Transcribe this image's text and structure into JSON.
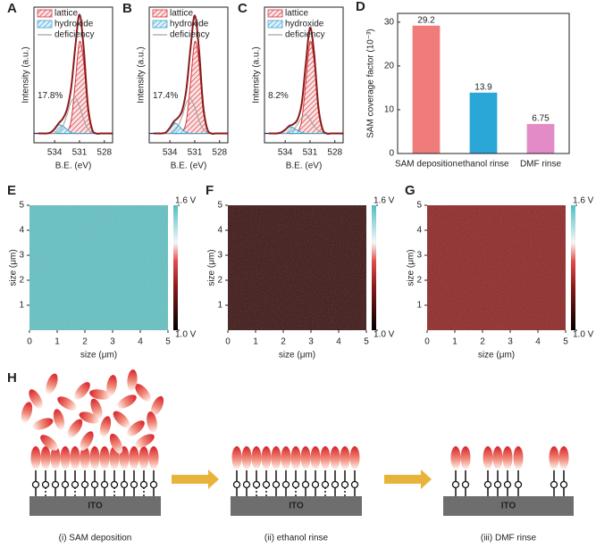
{
  "chart_data": [
    {
      "type": "xps",
      "panel": "A",
      "xlabel": "B.E. (eV)",
      "ylabel": "Intensity (a.u.)",
      "annotation": "17.8%",
      "x": [
        536,
        535.5,
        535,
        534.5,
        534,
        533.5,
        533,
        532.5,
        532,
        531.5,
        531,
        530.5,
        530,
        529.5,
        529,
        528.5,
        528,
        527.5,
        527
      ],
      "xlim": [
        536.5,
        527
      ],
      "ylim": [
        -10,
        135
      ],
      "xticks": [
        534,
        531,
        528
      ],
      "series": [
        {
          "name": "lattice",
          "color": "#d9363e",
          "values": [
            0,
            0,
            0,
            0,
            0,
            0,
            0,
            2,
            14,
            55,
            98,
            77,
            26,
            4,
            0,
            0,
            0,
            0,
            0
          ]
        },
        {
          "name": "hydroxide",
          "color": "#3aa6d0",
          "values": [
            0,
            0,
            0,
            1,
            5,
            9,
            8,
            4,
            1,
            0,
            0,
            0,
            0,
            0,
            0,
            0,
            0,
            0,
            0
          ]
        },
        {
          "name": "deficiency",
          "color": "#a0a0a0",
          "values": [
            0,
            0,
            0,
            0,
            0,
            2,
            8,
            20,
            34,
            38,
            29,
            15,
            5,
            1,
            0,
            0,
            0,
            0,
            0
          ]
        },
        {
          "color": "#8b1a1a",
          "values": [
            0,
            0,
            0,
            1,
            5,
            11,
            16,
            26,
            49,
            93,
            127,
            92,
            31,
            5,
            0,
            0,
            0,
            0,
            0
          ]
        }
      ]
    },
    {
      "type": "xps",
      "panel": "B",
      "xlabel": "B.E. (eV)",
      "ylabel": "Intensity (a.u.)",
      "annotation": "17.4%",
      "x": [
        536,
        535.5,
        535,
        534.5,
        534,
        533.5,
        533,
        532.5,
        532,
        531.5,
        531,
        530.5,
        530,
        529.5,
        529,
        528.5,
        528,
        527.5,
        527
      ],
      "xlim": [
        536.5,
        527
      ],
      "ylim": [
        -10,
        135
      ],
      "xticks": [
        534,
        531,
        528
      ],
      "series": [
        {
          "name": "lattice",
          "color": "#d9363e",
          "values": [
            0,
            0,
            0,
            0,
            0,
            0,
            0,
            2,
            14,
            55,
            98,
            77,
            26,
            4,
            0,
            0,
            0,
            0,
            0
          ]
        },
        {
          "name": "hydroxide",
          "color": "#3aa6d0",
          "values": [
            0,
            0,
            0,
            1,
            6,
            11,
            9,
            4,
            1,
            0,
            0,
            0,
            0,
            0,
            0,
            0,
            0,
            0,
            0
          ]
        },
        {
          "name": "deficiency",
          "color": "#a0a0a0",
          "values": [
            0,
            0,
            0,
            0,
            0,
            2,
            8,
            19,
            33,
            37,
            28,
            14,
            5,
            1,
            0,
            0,
            0,
            0,
            0
          ]
        },
        {
          "color": "#8b1a1a",
          "values": [
            0,
            0,
            0,
            1,
            6,
            13,
            17,
            25,
            48,
            92,
            126,
            91,
            31,
            5,
            0,
            0,
            0,
            0,
            0
          ]
        }
      ]
    },
    {
      "type": "xps",
      "panel": "C",
      "xlabel": "B.E. (eV)",
      "ylabel": "Intensity (a.u.)",
      "annotation": "8.2%",
      "x": [
        536,
        535.5,
        535,
        534.5,
        534,
        533.5,
        533,
        532.5,
        532,
        531.5,
        531,
        530.5,
        530,
        529.5,
        529,
        528.5,
        528,
        527.5,
        527
      ],
      "xlim": [
        536.5,
        527
      ],
      "ylim": [
        -10,
        135
      ],
      "xticks": [
        534,
        531,
        528
      ],
      "series": [
        {
          "name": "lattice",
          "color": "#d9363e",
          "values": [
            0,
            0,
            0,
            0,
            0,
            0,
            0,
            2,
            14,
            55,
            98,
            77,
            26,
            4,
            0,
            0,
            0,
            0,
            0
          ]
        },
        {
          "name": "hydroxide",
          "color": "#3aa6d0",
          "values": [
            0,
            0,
            0,
            1,
            4,
            7,
            6,
            3,
            1,
            0,
            0,
            0,
            0,
            0,
            0,
            0,
            0,
            0,
            0
          ]
        },
        {
          "name": "deficiency",
          "color": "#a0a0a0",
          "values": [
            0,
            0,
            0,
            0,
            0,
            1,
            4,
            10,
            17,
            20,
            15,
            8,
            3,
            1,
            0,
            0,
            0,
            0,
            0
          ]
        },
        {
          "color": "#8b1a1a",
          "values": [
            0,
            0,
            0,
            1,
            4,
            8,
            10,
            15,
            32,
            75,
            113,
            85,
            29,
            5,
            0,
            0,
            0,
            0,
            0
          ]
        }
      ]
    },
    {
      "type": "bar",
      "panel": "D",
      "ylabel": "SAM coverage factor (10⁻³)",
      "categories": [
        "SAM deposition",
        "ethanol rinse",
        "DMF rinse"
      ],
      "values": [
        29.2,
        13.9,
        6.75
      ],
      "colors": [
        "#f07b7b",
        "#2aa7d6",
        "#e38bc7"
      ],
      "ylim": [
        0,
        32
      ],
      "yticks": [
        0,
        10,
        20,
        30
      ]
    },
    {
      "type": "heatmap",
      "panel": "E",
      "color": "#62c1c3",
      "xlabel": "size (μm)",
      "ylabel": "size (μm)",
      "xlim": [
        0,
        5
      ],
      "ylim": [
        0,
        5
      ],
      "xticks": [
        0,
        1,
        2,
        3,
        4,
        5
      ],
      "yticks": [
        1,
        2,
        3,
        4,
        5
      ],
      "zlim": [
        1.0,
        1.6
      ],
      "zticks": [
        {
          "value": 1.6,
          "label": "1.6 V"
        },
        {
          "value": 1.0,
          "label": "1.0 V"
        }
      ]
    },
    {
      "type": "heatmap",
      "panel": "F",
      "color": "#3a1212",
      "xlabel": "size (μm)",
      "ylabel": "size (μm)",
      "xlim": [
        0,
        5
      ],
      "ylim": [
        0,
        5
      ],
      "xticks": [
        0,
        1,
        2,
        3,
        4,
        5
      ],
      "yticks": [
        1,
        2,
        3,
        4,
        5
      ],
      "zlim": [
        1.0,
        1.6
      ],
      "zticks": [
        {
          "value": 1.6,
          "label": "1.6 V"
        },
        {
          "value": 1.0,
          "label": "1.0 V"
        }
      ]
    },
    {
      "type": "heatmap",
      "panel": "G",
      "color": "#8e2424",
      "xlabel": "size (μm)",
      "ylabel": "size (μm)",
      "xlim": [
        0,
        5
      ],
      "ylim": [
        0,
        5
      ],
      "xticks": [
        0,
        1,
        2,
        3,
        4,
        5
      ],
      "yticks": [
        1,
        2,
        3,
        4,
        5
      ],
      "zlim": [
        1.0,
        1.6
      ],
      "zticks": [
        {
          "value": 1.6,
          "label": "1.6 V"
        },
        {
          "value": 1.0,
          "label": "1.0 V"
        }
      ]
    }
  ],
  "diagram": {
    "label": "H",
    "stages": [
      {
        "substrate": "ITO",
        "caption": "(i) SAM deposition"
      },
      {
        "substrate": "ITO",
        "caption": "(ii) ethanol rinse"
      },
      {
        "substrate": "ITO",
        "caption": "(iii) DMF rinse"
      }
    ]
  }
}
